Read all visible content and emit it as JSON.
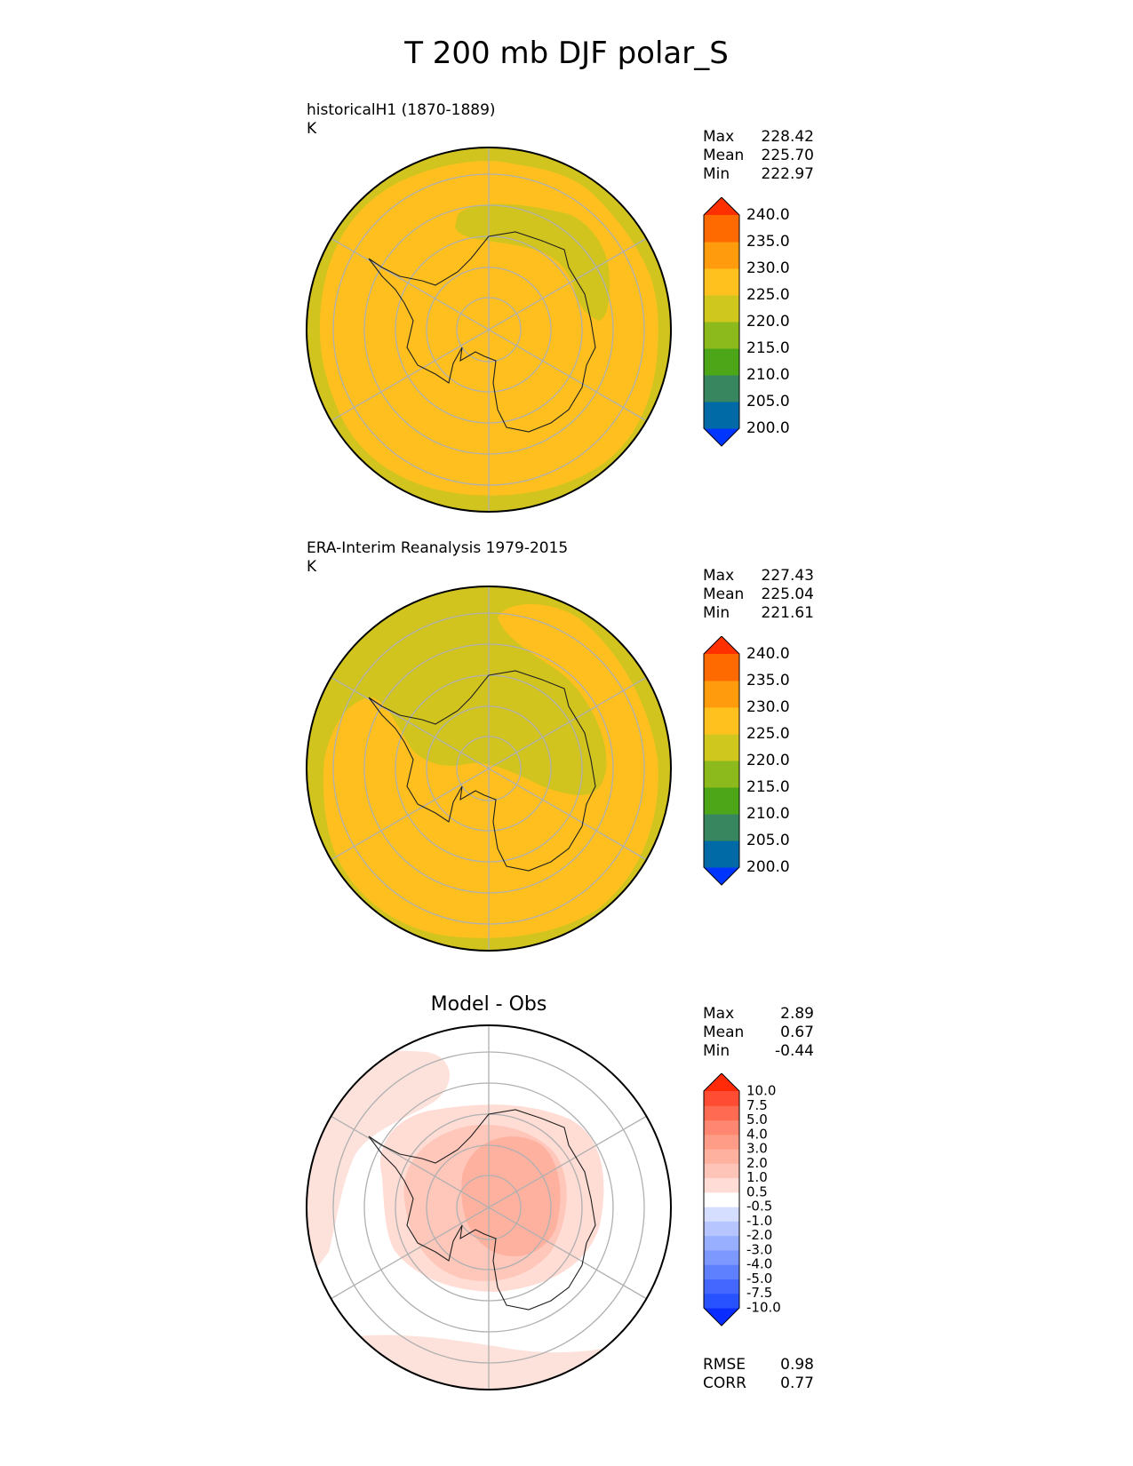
{
  "title": "T 200 mb DJF polar_S",
  "panels": [
    {
      "id": "test",
      "label_line1": "historicalH1 (1870-1889)",
      "label_line2": "K",
      "stats": [
        {
          "name": "Max",
          "value": "228.42"
        },
        {
          "name": "Mean",
          "value": "225.70"
        },
        {
          "name": "Min",
          "value": "222.97"
        }
      ],
      "colorbar": {
        "colors": [
          "#0035ff",
          "#006aa6",
          "#388660",
          "#4ca618",
          "#8cba1c",
          "#cfc61e",
          "#ffc11e",
          "#ff9b0d",
          "#ff6a00",
          "#ff3000"
        ],
        "labels": [
          "240.0",
          "235.0",
          "230.0",
          "225.0",
          "220.0",
          "215.0",
          "210.0",
          "205.0",
          "200.0"
        ]
      }
    },
    {
      "id": "ref",
      "label_line1": "ERA-Interim Reanalysis 1979-2015",
      "label_line2": "K",
      "stats": [
        {
          "name": "Max",
          "value": "227.43"
        },
        {
          "name": "Mean",
          "value": "225.04"
        },
        {
          "name": "Min",
          "value": "221.61"
        }
      ],
      "colorbar": {
        "colors": [
          "#0035ff",
          "#006aa6",
          "#388660",
          "#4ca618",
          "#8cba1c",
          "#cfc61e",
          "#ffc11e",
          "#ff9b0d",
          "#ff6a00",
          "#ff3000"
        ],
        "labels": [
          "240.0",
          "235.0",
          "230.0",
          "225.0",
          "220.0",
          "215.0",
          "210.0",
          "205.0",
          "200.0"
        ]
      }
    },
    {
      "id": "diff",
      "title": "Model - Obs",
      "stats": [
        {
          "name": "Max",
          "value": "2.89"
        },
        {
          "name": "Mean",
          "value": "0.67"
        },
        {
          "name": "Min",
          "value": "-0.44"
        }
      ],
      "extra_stats": [
        {
          "name": "RMSE",
          "value": "0.98"
        },
        {
          "name": "CORR",
          "value": "0.77"
        }
      ],
      "colorbar": {
        "colors": [
          "#0a2cff",
          "#2852ff",
          "#4468ff",
          "#5e80ff",
          "#7d98ff",
          "#98aeff",
          "#b6c4ff",
          "#d6deff",
          "#ffffff",
          "#ffdcd6",
          "#ffc4b8",
          "#ffb1a0",
          "#ff9c88",
          "#ff8670",
          "#ff6a52",
          "#ff4c32",
          "#ff2a08"
        ],
        "labels": [
          "10.0",
          "7.5",
          "5.0",
          "4.0",
          "3.0",
          "2.0",
          "1.0",
          "0.5",
          "-0.5",
          "-1.0",
          "-2.0",
          "-3.0",
          "-4.0",
          "-5.0",
          "-7.5",
          "-10.0"
        ]
      }
    }
  ]
}
